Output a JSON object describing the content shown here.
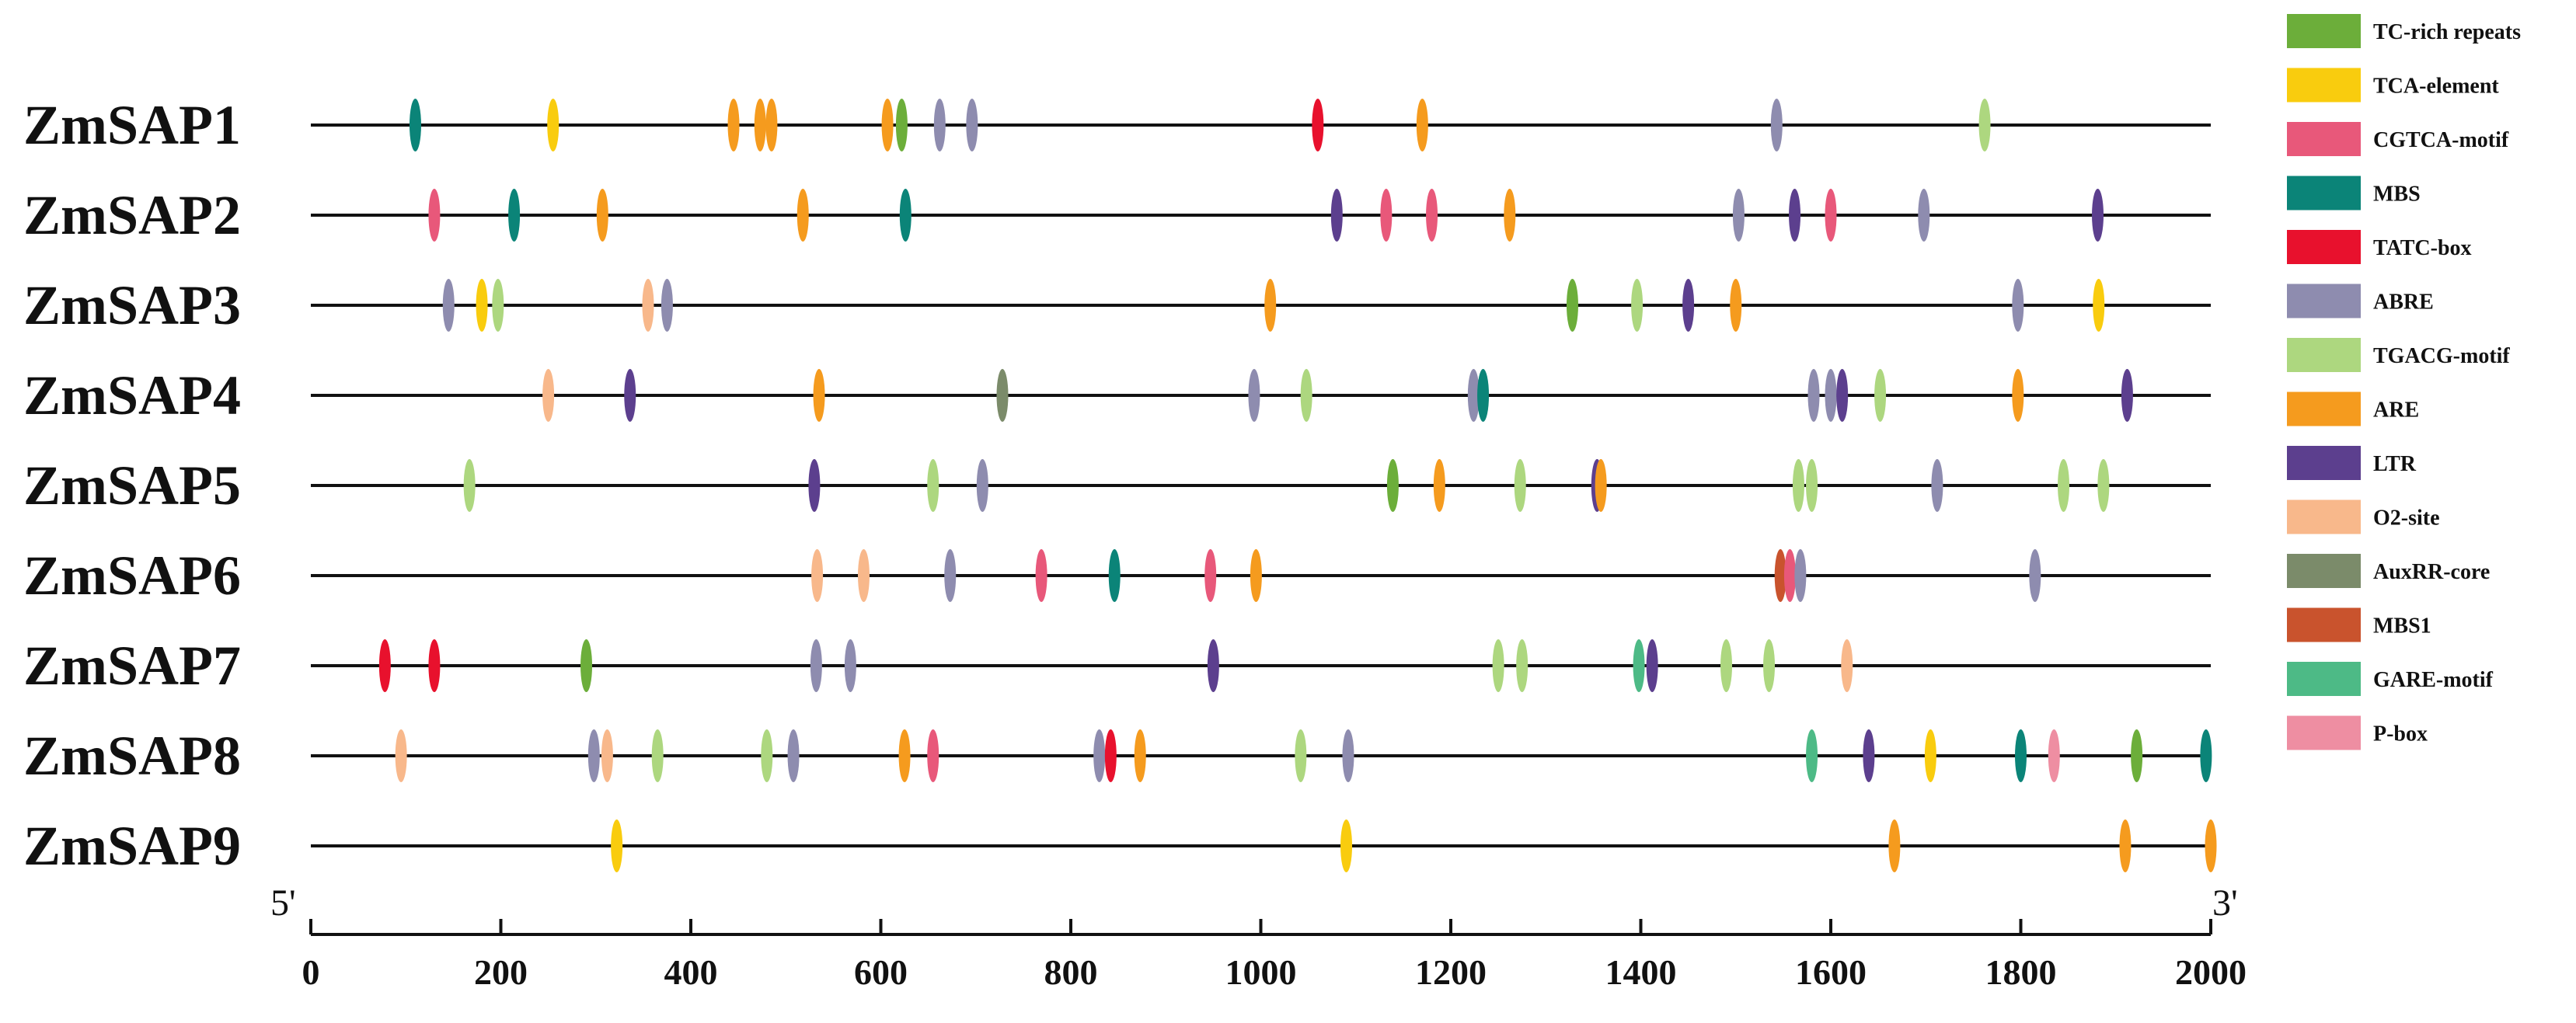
{
  "chart_data": {
    "type": "scatter",
    "xlim": [
      0,
      2000
    ],
    "x_ticks": [
      0,
      200,
      400,
      600,
      800,
      1000,
      1200,
      1400,
      1600,
      1800,
      2000
    ],
    "five_prime_label": "5'",
    "three_prime_label": "3'",
    "legend_position": "right",
    "genes": [
      {
        "name": "ZmSAP1",
        "elements": [
          {
            "type": "MBS",
            "x": 110
          },
          {
            "type": "TCA-element",
            "x": 255
          },
          {
            "type": "ARE",
            "x": 445
          },
          {
            "type": "ARE",
            "x": 473
          },
          {
            "type": "ARE",
            "x": 485
          },
          {
            "type": "ARE",
            "x": 607
          },
          {
            "type": "TC-rich repeats",
            "x": 622
          },
          {
            "type": "ABRE",
            "x": 662
          },
          {
            "type": "ABRE",
            "x": 696
          },
          {
            "type": "TATC-box",
            "x": 1060
          },
          {
            "type": "ARE",
            "x": 1170
          },
          {
            "type": "ABRE",
            "x": 1543
          },
          {
            "type": "TGACG-motif",
            "x": 1762
          }
        ]
      },
      {
        "name": "ZmSAP2",
        "elements": [
          {
            "type": "CGTCA-motif",
            "x": 130
          },
          {
            "type": "MBS",
            "x": 214
          },
          {
            "type": "ARE",
            "x": 307
          },
          {
            "type": "ARE",
            "x": 518
          },
          {
            "type": "MBS",
            "x": 626
          },
          {
            "type": "LTR",
            "x": 1080
          },
          {
            "type": "CGTCA-motif",
            "x": 1132
          },
          {
            "type": "CGTCA-motif",
            "x": 1180
          },
          {
            "type": "ARE",
            "x": 1262
          },
          {
            "type": "ABRE",
            "x": 1503
          },
          {
            "type": "LTR",
            "x": 1562
          },
          {
            "type": "CGTCA-motif",
            "x": 1600
          },
          {
            "type": "ABRE",
            "x": 1698
          },
          {
            "type": "LTR",
            "x": 1881
          }
        ]
      },
      {
        "name": "ZmSAP3",
        "elements": [
          {
            "type": "ABRE",
            "x": 145
          },
          {
            "type": "TCA-element",
            "x": 180
          },
          {
            "type": "TGACG-motif",
            "x": 197
          },
          {
            "type": "O2-site",
            "x": 355
          },
          {
            "type": "ABRE",
            "x": 375
          },
          {
            "type": "ARE",
            "x": 1010
          },
          {
            "type": "TC-rich repeats",
            "x": 1328
          },
          {
            "type": "TGACG-motif",
            "x": 1396
          },
          {
            "type": "LTR",
            "x": 1450
          },
          {
            "type": "ARE",
            "x": 1500
          },
          {
            "type": "ABRE",
            "x": 1797
          },
          {
            "type": "TCA-element",
            "x": 1882
          }
        ]
      },
      {
        "name": "ZmSAP4",
        "elements": [
          {
            "type": "O2-site",
            "x": 250
          },
          {
            "type": "LTR",
            "x": 336
          },
          {
            "type": "ARE",
            "x": 535
          },
          {
            "type": "AuxRR-core",
            "x": 728
          },
          {
            "type": "ABRE",
            "x": 993
          },
          {
            "type": "TGACG-motif",
            "x": 1048
          },
          {
            "type": "ABRE",
            "x": 1224
          },
          {
            "type": "MBS",
            "x": 1234
          },
          {
            "type": "ABRE",
            "x": 1582
          },
          {
            "type": "ABRE",
            "x": 1600
          },
          {
            "type": "LTR",
            "x": 1612
          },
          {
            "type": "TGACG-motif",
            "x": 1652
          },
          {
            "type": "ARE",
            "x": 1797
          },
          {
            "type": "LTR",
            "x": 1912
          }
        ]
      },
      {
        "name": "ZmSAP5",
        "elements": [
          {
            "type": "TGACG-motif",
            "x": 167
          },
          {
            "type": "LTR",
            "x": 530
          },
          {
            "type": "TGACG-motif",
            "x": 655
          },
          {
            "type": "ABRE",
            "x": 707
          },
          {
            "type": "TC-rich repeats",
            "x": 1139
          },
          {
            "type": "ARE",
            "x": 1188
          },
          {
            "type": "TGACG-motif",
            "x": 1273
          },
          {
            "type": "LTR",
            "x": 1354
          },
          {
            "type": "ARE",
            "x": 1358
          },
          {
            "type": "TGACG-motif",
            "x": 1566
          },
          {
            "type": "TGACG-motif",
            "x": 1580
          },
          {
            "type": "ABRE",
            "x": 1712
          },
          {
            "type": "TGACG-motif",
            "x": 1845
          },
          {
            "type": "TGACG-motif",
            "x": 1887
          }
        ]
      },
      {
        "name": "ZmSAP6",
        "elements": [
          {
            "type": "O2-site",
            "x": 533
          },
          {
            "type": "O2-site",
            "x": 582
          },
          {
            "type": "ABRE",
            "x": 673
          },
          {
            "type": "CGTCA-motif",
            "x": 769
          },
          {
            "type": "MBS",
            "x": 846
          },
          {
            "type": "CGTCA-motif",
            "x": 947
          },
          {
            "type": "ARE",
            "x": 995
          },
          {
            "type": "MBS1",
            "x": 1547
          },
          {
            "type": "CGTCA-motif",
            "x": 1557
          },
          {
            "type": "ABRE",
            "x": 1568
          },
          {
            "type": "ABRE",
            "x": 1815
          }
        ]
      },
      {
        "name": "ZmSAP7",
        "elements": [
          {
            "type": "TATC-box",
            "x": 78
          },
          {
            "type": "TATC-box",
            "x": 130
          },
          {
            "type": "TC-rich repeats",
            "x": 290
          },
          {
            "type": "ABRE",
            "x": 532
          },
          {
            "type": "ABRE",
            "x": 568
          },
          {
            "type": "LTR",
            "x": 950
          },
          {
            "type": "TGACG-motif",
            "x": 1250
          },
          {
            "type": "TGACG-motif",
            "x": 1275
          },
          {
            "type": "GARE-motif",
            "x": 1398
          },
          {
            "type": "LTR",
            "x": 1412
          },
          {
            "type": "TGACG-motif",
            "x": 1490
          },
          {
            "type": "TGACG-motif",
            "x": 1535
          },
          {
            "type": "O2-site",
            "x": 1617
          }
        ]
      },
      {
        "name": "ZmSAP8",
        "elements": [
          {
            "type": "O2-site",
            "x": 95
          },
          {
            "type": "ABRE",
            "x": 298
          },
          {
            "type": "O2-site",
            "x": 312
          },
          {
            "type": "TGACG-motif",
            "x": 365
          },
          {
            "type": "TGACG-motif",
            "x": 480
          },
          {
            "type": "ABRE",
            "x": 508
          },
          {
            "type": "ARE",
            "x": 625
          },
          {
            "type": "CGTCA-motif",
            "x": 655
          },
          {
            "type": "ABRE",
            "x": 830
          },
          {
            "type": "TATC-box",
            "x": 842
          },
          {
            "type": "ARE",
            "x": 873
          },
          {
            "type": "TGACG-motif",
            "x": 1042
          },
          {
            "type": "ABRE",
            "x": 1092
          },
          {
            "type": "GARE-motif",
            "x": 1580
          },
          {
            "type": "LTR",
            "x": 1640
          },
          {
            "type": "TCA-element",
            "x": 1705
          },
          {
            "type": "MBS",
            "x": 1800
          },
          {
            "type": "P-box",
            "x": 1835
          },
          {
            "type": "TC-rich repeats",
            "x": 1922
          },
          {
            "type": "MBS",
            "x": 1995
          }
        ]
      },
      {
        "name": "ZmSAP9",
        "elements": [
          {
            "type": "TCA-element",
            "x": 322
          },
          {
            "type": "TCA-element",
            "x": 1090
          },
          {
            "type": "ARE",
            "x": 1667
          },
          {
            "type": "ARE",
            "x": 1910
          },
          {
            "type": "ARE",
            "x": 2000
          }
        ]
      }
    ],
    "legend": [
      {
        "name": "TC-rich repeats",
        "color": "#6cae3a"
      },
      {
        "name": "TCA-element",
        "color": "#f9cc0e"
      },
      {
        "name": "CGTCA-motif",
        "color": "#e8587a"
      },
      {
        "name": "MBS",
        "color": "#0b8478"
      },
      {
        "name": "TATC-box",
        "color": "#e8112d"
      },
      {
        "name": "ABRE",
        "color": "#8e8caf"
      },
      {
        "name": "TGACG-motif",
        "color": "#add77f"
      },
      {
        "name": "ARE",
        "color": "#f59b1e"
      },
      {
        "name": "LTR",
        "color": "#5c3f8e"
      },
      {
        "name": "O2-site",
        "color": "#f8b88b"
      },
      {
        "name": "AuxRR-core",
        "color": "#7b8b6a"
      },
      {
        "name": "MBS1",
        "color": "#c9532d"
      },
      {
        "name": "GARE-motif",
        "color": "#4dba86"
      },
      {
        "name": "P-box",
        "color": "#ee8ea2"
      }
    ]
  }
}
